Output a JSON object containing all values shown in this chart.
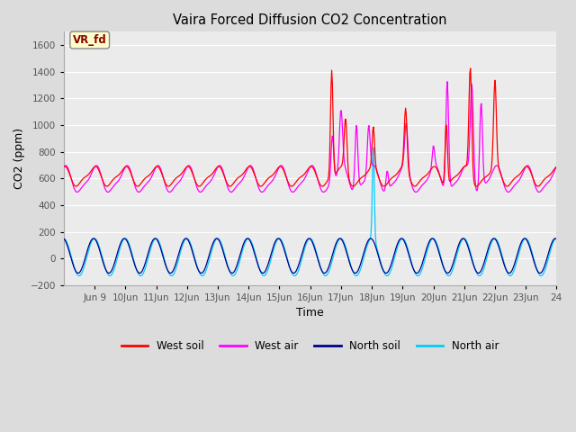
{
  "title": "Vaira Forced Diffusion CO2 Concentration",
  "xlabel": "Time",
  "ylabel": "CO2 (ppm)",
  "ylim": [
    -200,
    1700
  ],
  "yticks": [
    -200,
    0,
    200,
    400,
    600,
    800,
    1000,
    1200,
    1400,
    1600
  ],
  "bg_color": "#dcdcdc",
  "plot_bg_color": "#ebebeb",
  "colors": {
    "west_soil": "#ff0000",
    "west_air": "#ff00ff",
    "north_soil": "#00008b",
    "north_air": "#00ccff"
  },
  "label_box": {
    "text": "VR_fd",
    "text_color": "#8b0000",
    "bg_color": "#ffffcc",
    "edge_color": "#888888"
  },
  "xlim": [
    8.0,
    24.0
  ],
  "xtick_positions": [
    9,
    10,
    11,
    12,
    13,
    14,
    15,
    16,
    17,
    18,
    19,
    20,
    21,
    22,
    23,
    24
  ],
  "xtick_labels": [
    "Jun 9",
    "10Jun",
    "11Jun",
    "12Jun",
    "13Jun",
    "14Jun",
    "15Jun",
    "16Jun",
    "17Jun",
    "18Jun",
    "19Jun",
    "20Jun",
    "21Jun",
    "22Jun",
    "23Jun",
    "24"
  ]
}
